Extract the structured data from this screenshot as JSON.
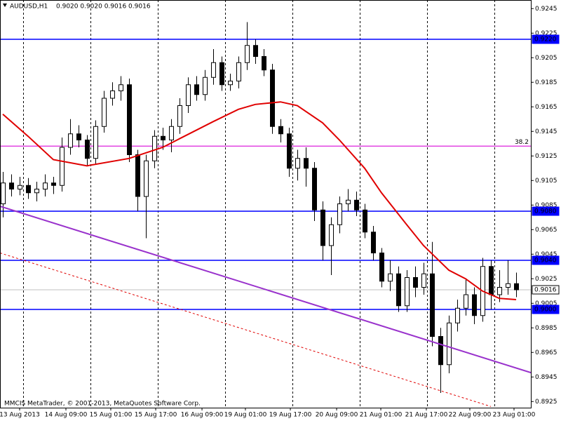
{
  "chart_data": {
    "type": "candlestick",
    "symbol": "AUDUSD,H1",
    "ohlc_info": "0.9020 0.9020 0.9016 0.9016",
    "footer": "MMCIS MetaTrader, © 2001-2013, MetaQuotes Software Corp.",
    "ylim": [
      0.892,
      0.9252
    ],
    "yticks": [
      0.9245,
      0.9225,
      0.9205,
      0.9185,
      0.9165,
      0.9145,
      0.9125,
      0.9105,
      0.9085,
      0.9065,
      0.9045,
      0.9025,
      0.9005,
      0.8985,
      0.8965,
      0.8945,
      0.8925
    ],
    "xticks": [
      {
        "value": 2,
        "label": "13 Aug 2013"
      },
      {
        "value": 7.5,
        "label": "14 Aug 09:00"
      },
      {
        "value": 12.83,
        "label": "15 Aug 01:00"
      },
      {
        "value": 18.17,
        "label": "15 Aug 17:00"
      },
      {
        "value": 23.67,
        "label": "16 Aug 09:00"
      },
      {
        "value": 28.83,
        "label": "19 Aug 01:00"
      },
      {
        "value": 34.17,
        "label": "19 Aug 17:00"
      },
      {
        "value": 39.67,
        "label": "20 Aug 09:00"
      },
      {
        "value": 44.92,
        "label": "21 Aug 01:00"
      },
      {
        "value": 50.33,
        "label": "21 Aug 17:00"
      },
      {
        "value": 55.5,
        "label": "22 Aug 09:00"
      },
      {
        "value": 60.75,
        "label": "23 Aug 01:00"
      }
    ],
    "ohlc": [
      [
        0.9086,
        0.9112,
        0.9075,
        0.9103
      ],
      [
        0.9103,
        0.911,
        0.9092,
        0.9098
      ],
      [
        0.9098,
        0.9108,
        0.9093,
        0.9101
      ],
      [
        0.9101,
        0.9107,
        0.909,
        0.9095
      ],
      [
        0.9095,
        0.9104,
        0.9088,
        0.9098
      ],
      [
        0.9098,
        0.911,
        0.9092,
        0.9103
      ],
      [
        0.9103,
        0.9108,
        0.9094,
        0.9101
      ],
      [
        0.9101,
        0.914,
        0.9096,
        0.9132
      ],
      [
        0.9132,
        0.9155,
        0.9126,
        0.9143
      ],
      [
        0.9143,
        0.915,
        0.9132,
        0.9138
      ],
      [
        0.9138,
        0.9142,
        0.9117,
        0.9123
      ],
      [
        0.9123,
        0.9154,
        0.9118,
        0.9149
      ],
      [
        0.9149,
        0.9178,
        0.9144,
        0.9172
      ],
      [
        0.9172,
        0.9185,
        0.9166,
        0.9178
      ],
      [
        0.9178,
        0.919,
        0.917,
        0.9183
      ],
      [
        0.9183,
        0.9188,
        0.912,
        0.9126
      ],
      [
        0.9126,
        0.913,
        0.908,
        0.9092
      ],
      [
        0.9092,
        0.9126,
        0.9058,
        0.9121
      ],
      [
        0.9121,
        0.9146,
        0.9115,
        0.9141
      ],
      [
        0.9141,
        0.9148,
        0.913,
        0.9138
      ],
      [
        0.9138,
        0.9155,
        0.9128,
        0.9149
      ],
      [
        0.9149,
        0.9172,
        0.9143,
        0.9166
      ],
      [
        0.9166,
        0.9189,
        0.916,
        0.9183
      ],
      [
        0.9183,
        0.919,
        0.917,
        0.9175
      ],
      [
        0.9175,
        0.9195,
        0.917,
        0.9189
      ],
      [
        0.9189,
        0.9212,
        0.9183,
        0.9201
      ],
      [
        0.9201,
        0.9206,
        0.9178,
        0.9183
      ],
      [
        0.9183,
        0.9192,
        0.9178,
        0.9186
      ],
      [
        0.9186,
        0.9206,
        0.918,
        0.9201
      ],
      [
        0.9201,
        0.9234,
        0.9195,
        0.9215
      ],
      [
        0.9215,
        0.922,
        0.92,
        0.9206
      ],
      [
        0.9206,
        0.9212,
        0.919,
        0.9195
      ],
      [
        0.9195,
        0.92,
        0.9143,
        0.9149
      ],
      [
        0.9149,
        0.9155,
        0.9136,
        0.9143
      ],
      [
        0.9143,
        0.9148,
        0.9108,
        0.9115
      ],
      [
        0.9115,
        0.913,
        0.9105,
        0.9123
      ],
      [
        0.9123,
        0.9132,
        0.91,
        0.9115
      ],
      [
        0.9115,
        0.912,
        0.9072,
        0.9081
      ],
      [
        0.9081,
        0.9088,
        0.904,
        0.9052
      ],
      [
        0.9052,
        0.9075,
        0.9028,
        0.9069
      ],
      [
        0.9069,
        0.9092,
        0.9062,
        0.9086
      ],
      [
        0.9086,
        0.9098,
        0.908,
        0.9089
      ],
      [
        0.9089,
        0.9096,
        0.9076,
        0.9081
      ],
      [
        0.9081,
        0.9086,
        0.9058,
        0.9063
      ],
      [
        0.9063,
        0.9068,
        0.904,
        0.9046
      ],
      [
        0.9046,
        0.905,
        0.9018,
        0.9023
      ],
      [
        0.9023,
        0.904,
        0.9015,
        0.9029
      ],
      [
        0.9029,
        0.9035,
        0.8998,
        0.9003
      ],
      [
        0.9003,
        0.9032,
        0.8998,
        0.9026
      ],
      [
        0.9026,
        0.9035,
        0.901,
        0.9018
      ],
      [
        0.9018,
        0.9038,
        0.9012,
        0.9029
      ],
      [
        0.9029,
        0.9055,
        0.897,
        0.8978
      ],
      [
        0.8978,
        0.8985,
        0.8932,
        0.8955
      ],
      [
        0.8955,
        0.8995,
        0.8948,
        0.8989
      ],
      [
        0.8989,
        0.9008,
        0.8982,
        0.9001
      ],
      [
        0.9001,
        0.9025,
        0.8995,
        0.9012
      ],
      [
        0.9012,
        0.9018,
        0.8988,
        0.8995
      ],
      [
        0.8995,
        0.9042,
        0.899,
        0.9035
      ],
      [
        0.9035,
        0.904,
        0.9,
        0.9012
      ],
      [
        0.9012,
        0.9032,
        0.9006,
        0.9018
      ],
      [
        0.9018,
        0.904,
        0.9012,
        0.9021
      ],
      [
        0.9021,
        0.903,
        0.901,
        0.9016
      ]
    ],
    "lines": [
      {
        "color": "#e00000",
        "style": "solid",
        "x": [
          0,
          3,
          6,
          10,
          15,
          19,
          21,
          25,
          28,
          30,
          33,
          35,
          38,
          40,
          43,
          45,
          48,
          50,
          53,
          55,
          57,
          59,
          61
        ],
        "values": [
          0.9159,
          0.9141,
          0.9122,
          0.9117,
          0.9123,
          0.9132,
          0.9139,
          0.9153,
          0.9163,
          0.9167,
          0.9169,
          0.9166,
          0.9152,
          0.9138,
          0.9115,
          0.9095,
          0.9069,
          0.9052,
          0.9032,
          0.9025,
          0.9015,
          0.9009,
          0.9008
        ]
      },
      {
        "color": "#9932cc",
        "style": "solid",
        "x": [
          -0.33,
          63
        ],
        "values": [
          0.9084,
          0.8948
        ]
      },
      {
        "color": "#e00000",
        "style": "dashed",
        "x": [
          -0.33,
          58
        ],
        "values": [
          0.9046,
          0.8921
        ]
      }
    ],
    "hlines": [
      {
        "value": 0.922,
        "label": "0.9220",
        "color": "#0000ff",
        "box": true
      },
      {
        "value": 0.908,
        "label": "0.9080",
        "color": "#0000ff",
        "box": true
      },
      {
        "value": 0.904,
        "label": "0.9040",
        "color": "#0000ff",
        "box": true
      },
      {
        "value": 0.9,
        "label": "0.9000",
        "color": "#0000ff",
        "box": true
      },
      {
        "value": 0.9016,
        "label": "0.9016",
        "color": "#c0c0c0",
        "box": true
      },
      {
        "value": 0.9133,
        "label": "38.2",
        "color": "#dd22dd",
        "box": false
      }
    ]
  }
}
